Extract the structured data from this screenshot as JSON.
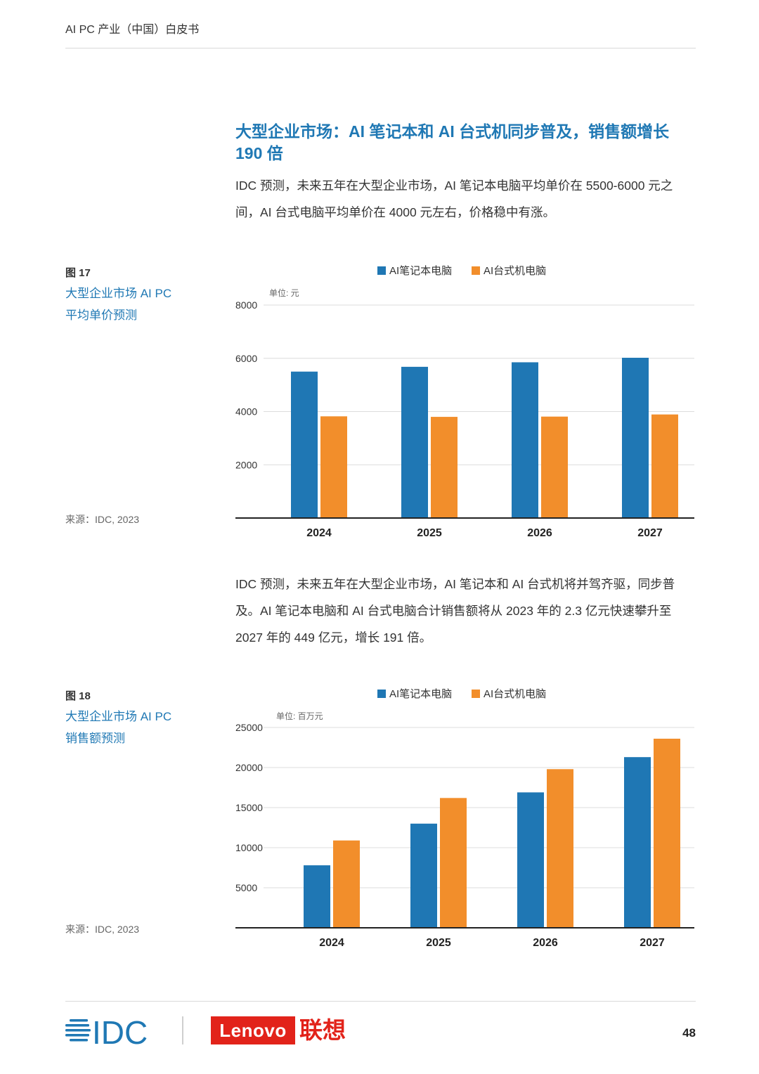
{
  "header": {
    "title": "AI PC 产业（中国）白皮书"
  },
  "section": {
    "heading": "大型企业市场：AI 笔记本和 AI 台式机同步普及，销售额增长 190 倍",
    "paragraph1": "IDC 预测，未来五年在大型企业市场，AI 笔记本电脑平均单价在 5500-6000 元之间，AI 台式电脑平均单价在 4000 元左右，价格稳中有涨。",
    "paragraph2": "IDC 预测，未来五年在大型企业市场，AI 笔记本和 AI 台式机将并驾齐驱，同步普及。AI 笔记本电脑和 AI 台式电脑合计销售额将从 2023 年的 2.3 亿元快速攀升至 2027 年的 449 亿元，增长 191 倍。"
  },
  "figures": [
    {
      "label": "图 17",
      "title_line1": "大型企业市场 AI PC",
      "title_line2": "平均单价预测",
      "source": "来源：IDC, 2023"
    },
    {
      "label": "图 18",
      "title_line1": "大型企业市场 AI PC",
      "title_line2": "销售额预测",
      "source": "来源：IDC, 2023"
    }
  ],
  "colors": {
    "notebook": "#1f77b4",
    "desktop": "#f28e2b",
    "accent_text": "#1f78b4",
    "brand_red": "#e2231a"
  },
  "chart_data": [
    {
      "type": "bar",
      "title": "",
      "unit_label": "单位: 元",
      "categories": [
        "2024",
        "2025",
        "2026",
        "2027"
      ],
      "series": [
        {
          "name": "AI笔记本电脑",
          "values": [
            5500,
            5680,
            5850,
            6020
          ]
        },
        {
          "name": "AI台式机电脑",
          "values": [
            3820,
            3800,
            3810,
            3890
          ]
        }
      ],
      "ylim": [
        0,
        8000
      ],
      "yticks": [
        2000,
        4000,
        6000,
        8000
      ],
      "grid": true,
      "legend": "top"
    },
    {
      "type": "bar",
      "title": "",
      "unit_label": "单位: 百万元",
      "categories": [
        "2024",
        "2025",
        "2026",
        "2027"
      ],
      "series": [
        {
          "name": "AI笔记本电脑",
          "values": [
            7800,
            13000,
            16900,
            21300
          ]
        },
        {
          "name": "AI台式机电脑",
          "values": [
            10900,
            16200,
            19800,
            23600
          ]
        }
      ],
      "ylim": [
        0,
        25000
      ],
      "yticks": [
        5000,
        10000,
        15000,
        20000,
        25000
      ],
      "grid": true,
      "legend": "top"
    }
  ],
  "footer": {
    "idc_logo_text": "IDC",
    "lenovo_text": "Lenovo",
    "lenovo_cn": "联想",
    "page_number": "48"
  }
}
